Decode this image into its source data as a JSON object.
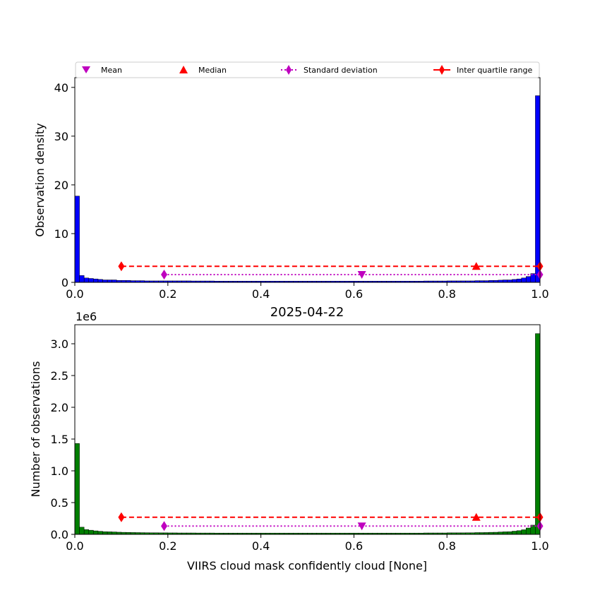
{
  "chart_data": [
    {
      "type": "bar",
      "title": "",
      "xlabel": "",
      "ylabel": "Observation density",
      "xlim": [
        0,
        1
      ],
      "ylim": [
        0,
        42
      ],
      "xticks": [
        "0.0",
        "0.2",
        "0.4",
        "0.6",
        "0.8",
        "1.0"
      ],
      "yticks": [
        "0",
        "10",
        "20",
        "30",
        "40"
      ],
      "grid": false,
      "legend_position": "top, spanning full width",
      "color": "#0000ff",
      "bin_width": 0.01,
      "values": [
        17.7,
        1.4,
        0.9,
        0.8,
        0.7,
        0.6,
        0.5,
        0.5,
        0.5,
        0.4,
        0.4,
        0.4,
        0.35,
        0.35,
        0.35,
        0.3,
        0.3,
        0.3,
        0.3,
        0.3,
        0.3,
        0.3,
        0.3,
        0.3,
        0.3,
        0.28,
        0.28,
        0.28,
        0.28,
        0.28,
        0.25,
        0.25,
        0.25,
        0.25,
        0.25,
        0.25,
        0.25,
        0.25,
        0.25,
        0.25,
        0.25,
        0.25,
        0.25,
        0.25,
        0.25,
        0.25,
        0.25,
        0.25,
        0.25,
        0.25,
        0.25,
        0.25,
        0.25,
        0.25,
        0.25,
        0.25,
        0.25,
        0.25,
        0.25,
        0.25,
        0.25,
        0.25,
        0.25,
        0.25,
        0.25,
        0.25,
        0.25,
        0.25,
        0.25,
        0.25,
        0.25,
        0.25,
        0.25,
        0.25,
        0.25,
        0.28,
        0.28,
        0.28,
        0.28,
        0.28,
        0.3,
        0.3,
        0.3,
        0.3,
        0.3,
        0.3,
        0.35,
        0.35,
        0.35,
        0.4,
        0.4,
        0.45,
        0.5,
        0.5,
        0.6,
        0.7,
        0.9,
        1.2,
        1.8,
        38.3
      ],
      "stats": {
        "mean": {
          "x": 0.617,
          "y": 1.6,
          "label": "Mean",
          "color": "#bf00bf"
        },
        "median": {
          "x": 0.863,
          "y": 3.3,
          "label": "Median",
          "color": "#ff0000"
        },
        "std_range": {
          "x": [
            0.192,
            1.0
          ],
          "y": 1.6,
          "label": "Standard deviation",
          "color": "#bf00bf"
        },
        "iqr_range": {
          "x": [
            0.1,
            1.0
          ],
          "y": 3.3,
          "label": "Inter quartile range",
          "color": "#ff0000"
        }
      }
    },
    {
      "type": "bar",
      "title": "2025-04-22",
      "xlabel": "VIIRS cloud mask confidently cloud [None]",
      "ylabel": "Number of observations",
      "offset_label": "1e6",
      "xlim": [
        0,
        1
      ],
      "ylim": [
        0,
        3.3
      ],
      "xticks": [
        "0.0",
        "0.2",
        "0.4",
        "0.6",
        "0.8",
        "1.0"
      ],
      "yticks": [
        "0.0",
        "0.5",
        "1.0",
        "1.5",
        "2.0",
        "2.5",
        "3.0"
      ],
      "grid": false,
      "color": "#007f00",
      "bin_width": 0.01,
      "values": [
        1.43,
        0.113,
        0.075,
        0.065,
        0.055,
        0.048,
        0.042,
        0.04,
        0.038,
        0.034,
        0.032,
        0.031,
        0.029,
        0.028,
        0.027,
        0.026,
        0.025,
        0.025,
        0.024,
        0.024,
        0.023,
        0.023,
        0.022,
        0.022,
        0.022,
        0.022,
        0.021,
        0.021,
        0.021,
        0.021,
        0.02,
        0.02,
        0.02,
        0.02,
        0.02,
        0.02,
        0.02,
        0.02,
        0.02,
        0.02,
        0.02,
        0.02,
        0.02,
        0.02,
        0.02,
        0.02,
        0.02,
        0.02,
        0.02,
        0.02,
        0.02,
        0.02,
        0.02,
        0.02,
        0.02,
        0.02,
        0.02,
        0.02,
        0.02,
        0.02,
        0.02,
        0.02,
        0.02,
        0.02,
        0.02,
        0.02,
        0.02,
        0.02,
        0.02,
        0.02,
        0.02,
        0.02,
        0.02,
        0.02,
        0.02,
        0.022,
        0.022,
        0.022,
        0.022,
        0.022,
        0.024,
        0.024,
        0.024,
        0.024,
        0.025,
        0.025,
        0.028,
        0.028,
        0.029,
        0.032,
        0.033,
        0.037,
        0.04,
        0.042,
        0.05,
        0.058,
        0.072,
        0.1,
        0.145,
        3.16
      ],
      "stats": {
        "mean": {
          "x": 0.617,
          "y": 0.13,
          "color": "#bf00bf"
        },
        "median": {
          "x": 0.863,
          "y": 0.27,
          "color": "#ff0000"
        },
        "std_range": {
          "x": [
            0.192,
            1.0
          ],
          "y": 0.13,
          "color": "#bf00bf"
        },
        "iqr_range": {
          "x": [
            0.1,
            1.0
          ],
          "y": 0.27,
          "color": "#ff0000"
        }
      }
    }
  ]
}
